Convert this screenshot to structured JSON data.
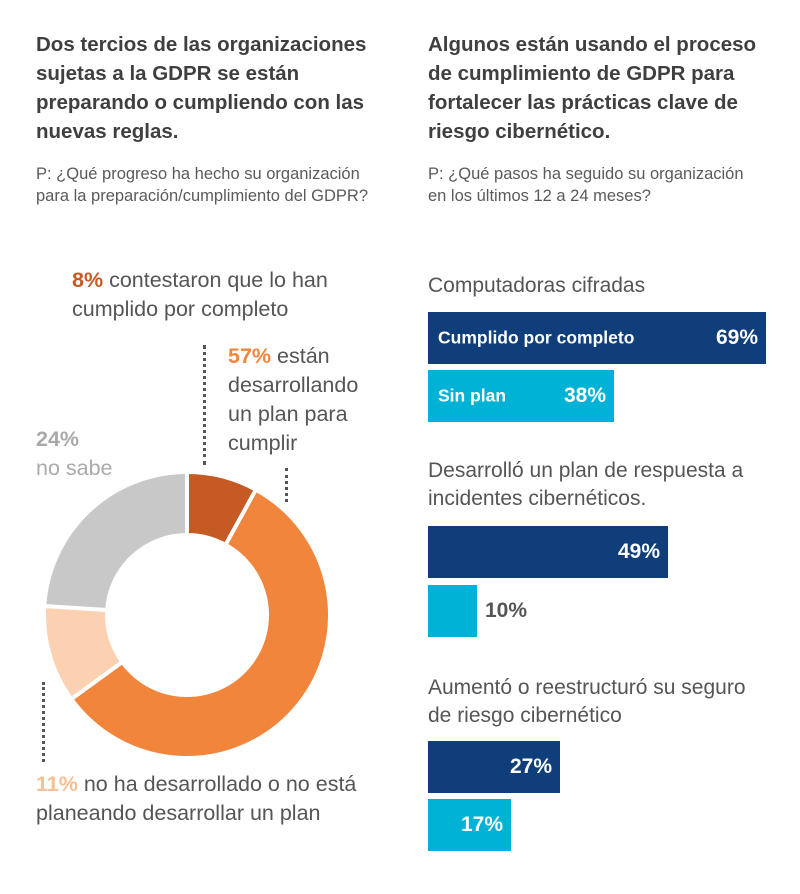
{
  "colors": {
    "dark_orange": "#c55a24",
    "orange": "#f0853b",
    "peach": "#fbd1b1",
    "gray": "#c8c8c8",
    "navy": "#0f3e7a",
    "cyan": "#00b2d6"
  },
  "left": {
    "heading": "Dos tercios de las organizaciones sujetas a la GDPR se están preparando o cumpliendo con las nuevas reglas.",
    "question": "P: ¿Qué progreso ha hecho su organización para la preparación/cumplimiento del GDPR?"
  },
  "right": {
    "heading": "Algunos están usando el proceso de cumplimiento de GDPR para fortalecer las prácticas clave de riesgo cibernético.",
    "question": "P: ¿Qué pasos ha seguido su organización en los últimos 12 a 24 meses?"
  },
  "chart_data": [
    {
      "type": "pie",
      "slices": [
        {
          "pct_label": "8%",
          "value": 8,
          "label": "contestaron que lo han cumplido por completo",
          "color": "#c55a24"
        },
        {
          "pct_label": "57%",
          "value": 57,
          "label": "están desarrollando un plan para cumplir",
          "color": "#f0853b"
        },
        {
          "pct_label": "11%",
          "value": 11,
          "label": "no ha desarrollado o no está planeando desarrollar un plan",
          "color": "#fbd1b1"
        },
        {
          "pct_label": "24%",
          "value": 24,
          "label": "no sabe",
          "color": "#c8c8c8"
        }
      ]
    },
    {
      "type": "bar",
      "orientation": "horizontal",
      "series_labels": [
        "Cumplido por completo",
        "Sin plan"
      ],
      "groups": [
        {
          "title": "Computadoras cifradas",
          "values": [
            69,
            38
          ],
          "value_labels": [
            "69%",
            "38%"
          ]
        },
        {
          "title": "Desarrolló un plan de respuesta a incidentes cibernéticos.",
          "values": [
            49,
            10
          ],
          "value_labels": [
            "49%",
            "10%"
          ]
        },
        {
          "title": "Aumentó o reestructuró su seguro de riesgo cibernético",
          "values": [
            27,
            17
          ],
          "value_labels": [
            "27%",
            "17%"
          ]
        }
      ],
      "xlim": [
        0,
        69
      ]
    }
  ]
}
